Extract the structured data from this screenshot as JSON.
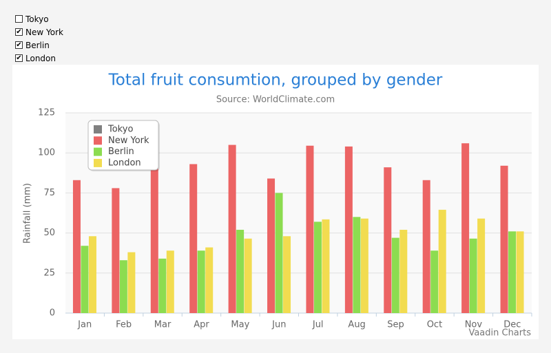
{
  "controls": [
    {
      "label": "Tokyo",
      "checked": false
    },
    {
      "label": "New York",
      "checked": true
    },
    {
      "label": "Berlin",
      "checked": true
    },
    {
      "label": "London",
      "checked": true
    }
  ],
  "chart_data": {
    "type": "bar",
    "title": "Total fruit consumtion, grouped by gender",
    "subtitle": "Source: WorldClimate.com",
    "y_label": "Rainfall (mm)",
    "credits": "Vaadin Charts",
    "categories": [
      "Jan",
      "Feb",
      "Mar",
      "Apr",
      "May",
      "Jun",
      "Jul",
      "Aug",
      "Sep",
      "Oct",
      "Nov",
      "Dec"
    ],
    "series": [
      {
        "name": "Tokyo",
        "color": "#808080",
        "visible": false
      },
      {
        "name": "New York",
        "color": "#ec6464",
        "visible": true,
        "values": [
          83,
          78,
          98,
          93,
          105,
          84,
          104.5,
          104,
          91,
          83,
          106,
          92
        ]
      },
      {
        "name": "Berlin",
        "color": "#8cdc50",
        "visible": true,
        "values": [
          42,
          33,
          34,
          39,
          52,
          75,
          57,
          60,
          47,
          39,
          46.5,
          51
        ]
      },
      {
        "name": "London",
        "color": "#f2dc50",
        "visible": true,
        "values": [
          48,
          38,
          39,
          41,
          46.5,
          48,
          58.5,
          59,
          52,
          64.5,
          59,
          51
        ]
      }
    ],
    "ylim": [
      0,
      125
    ],
    "yticks": [
      0,
      25,
      50,
      75,
      100,
      125
    ],
    "grid": true,
    "legend": "top-left"
  }
}
